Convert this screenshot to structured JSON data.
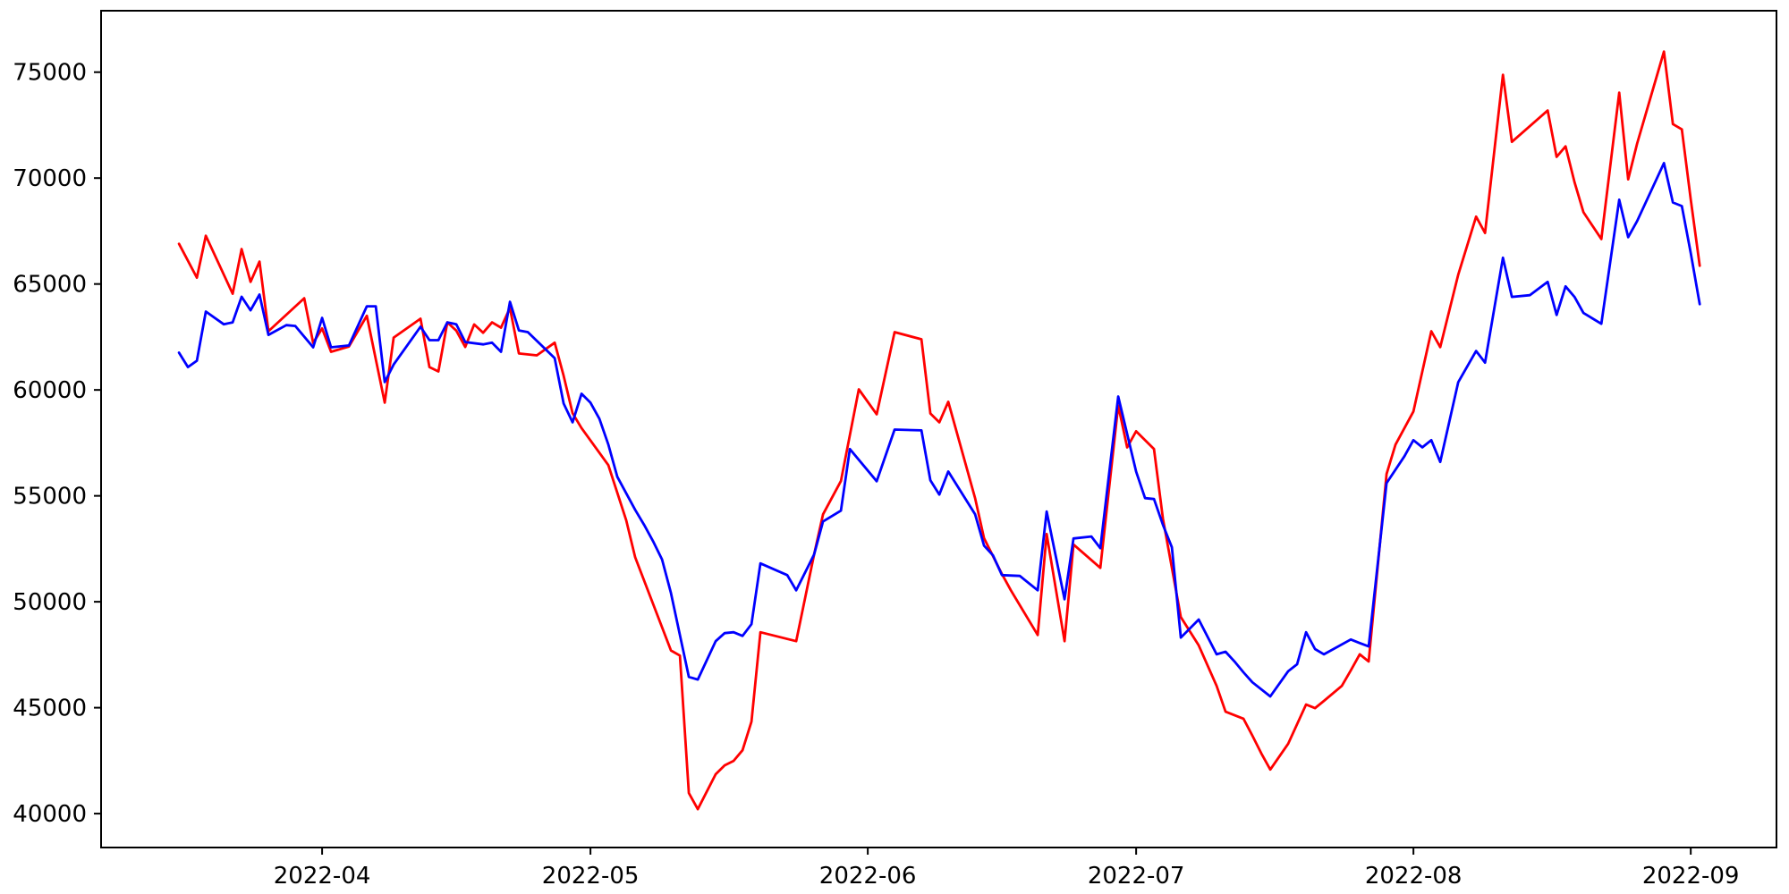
{
  "chart_data": {
    "type": "line",
    "title": "",
    "xlabel": "",
    "ylabel": "",
    "grid": false,
    "legend": "none",
    "background_color": "#ffffff",
    "axis_color": "#000000",
    "x_axis": {
      "type": "time",
      "range": [
        "2022-03-07T07:00:00Z",
        "2022-09-10T14:00:00Z"
      ],
      "ticks": [
        {
          "date": "2022-04-01",
          "label": "2022-04"
        },
        {
          "date": "2022-05-01",
          "label": "2022-05"
        },
        {
          "date": "2022-06-01",
          "label": "2022-06"
        },
        {
          "date": "2022-07-01",
          "label": "2022-07"
        },
        {
          "date": "2022-08-01",
          "label": "2022-08"
        },
        {
          "date": "2022-09-01",
          "label": "2022-09"
        }
      ]
    },
    "y_axis": {
      "range": [
        38400,
        77900
      ],
      "ticks": [
        40000,
        45000,
        50000,
        55000,
        60000,
        65000,
        70000,
        75000
      ]
    },
    "series": [
      {
        "name": "red-series",
        "color": "#ff0000",
        "points": [
          [
            "2022-03-16",
            66900
          ],
          [
            "2022-03-18",
            65300
          ],
          [
            "2022-03-19",
            67280
          ],
          [
            "2022-03-22",
            64540
          ],
          [
            "2022-03-23",
            66650
          ],
          [
            "2022-03-24",
            65100
          ],
          [
            "2022-03-25",
            66060
          ],
          [
            "2022-03-26",
            62770
          ],
          [
            "2022-03-30",
            64330
          ],
          [
            "2022-03-31",
            62220
          ],
          [
            "2022-04-01",
            62900
          ],
          [
            "2022-04-02",
            61800
          ],
          [
            "2022-04-04",
            62050
          ],
          [
            "2022-04-06",
            63500
          ],
          [
            "2022-04-08",
            59400
          ],
          [
            "2022-04-09",
            62470
          ],
          [
            "2022-04-12",
            63360
          ],
          [
            "2022-04-13",
            61080
          ],
          [
            "2022-04-14",
            60870
          ],
          [
            "2022-04-15",
            63190
          ],
          [
            "2022-04-16",
            62800
          ],
          [
            "2022-04-17",
            62030
          ],
          [
            "2022-04-18",
            63090
          ],
          [
            "2022-04-19",
            62700
          ],
          [
            "2022-04-20",
            63190
          ],
          [
            "2022-04-21",
            62940
          ],
          [
            "2022-04-22",
            63870
          ],
          [
            "2022-04-23",
            61720
          ],
          [
            "2022-04-25",
            61630
          ],
          [
            "2022-04-27",
            62230
          ],
          [
            "2022-04-28",
            60670
          ],
          [
            "2022-04-29",
            58900
          ],
          [
            "2022-04-30",
            58200
          ],
          [
            "2022-05-03",
            56450
          ],
          [
            "2022-05-05",
            53840
          ],
          [
            "2022-05-06",
            52100
          ],
          [
            "2022-05-08",
            49900
          ],
          [
            "2022-05-10",
            47700
          ],
          [
            "2022-05-11",
            47460
          ],
          [
            "2022-05-12",
            40970
          ],
          [
            "2022-05-13",
            40210
          ],
          [
            "2022-05-15",
            41860
          ],
          [
            "2022-05-16",
            42280
          ],
          [
            "2022-05-17",
            42490
          ],
          [
            "2022-05-18",
            42990
          ],
          [
            "2022-05-19",
            44340
          ],
          [
            "2022-05-20",
            48560
          ],
          [
            "2022-05-24",
            48140
          ],
          [
            "2022-05-26",
            52230
          ],
          [
            "2022-05-27",
            54130
          ],
          [
            "2022-05-29",
            55700
          ],
          [
            "2022-05-31",
            60030
          ],
          [
            "2022-06-02",
            58850
          ],
          [
            "2022-06-04",
            62730
          ],
          [
            "2022-06-07",
            62390
          ],
          [
            "2022-06-08",
            58890
          ],
          [
            "2022-06-09",
            58470
          ],
          [
            "2022-06-10",
            59440
          ],
          [
            "2022-06-13",
            54890
          ],
          [
            "2022-06-14",
            53000
          ],
          [
            "2022-06-16",
            51310
          ],
          [
            "2022-06-17",
            50540
          ],
          [
            "2022-06-20",
            48430
          ],
          [
            "2022-06-21",
            53200
          ],
          [
            "2022-06-23",
            48140
          ],
          [
            "2022-06-24",
            52700
          ],
          [
            "2022-06-27",
            51600
          ],
          [
            "2022-06-29",
            59270
          ],
          [
            "2022-06-30",
            57290
          ],
          [
            "2022-07-01",
            58050
          ],
          [
            "2022-07-03",
            57210
          ],
          [
            "2022-07-04",
            53920
          ],
          [
            "2022-07-06",
            49280
          ],
          [
            "2022-07-08",
            47940
          ],
          [
            "2022-07-10",
            46030
          ],
          [
            "2022-07-11",
            44810
          ],
          [
            "2022-07-13",
            44480
          ],
          [
            "2022-07-14",
            43680
          ],
          [
            "2022-07-15",
            42840
          ],
          [
            "2022-07-16",
            42080
          ],
          [
            "2022-07-18",
            43300
          ],
          [
            "2022-07-20",
            45150
          ],
          [
            "2022-07-21",
            44980
          ],
          [
            "2022-07-22",
            45320
          ],
          [
            "2022-07-24",
            46030
          ],
          [
            "2022-07-25",
            46760
          ],
          [
            "2022-07-26",
            47520
          ],
          [
            "2022-07-27",
            47180
          ],
          [
            "2022-07-29",
            56030
          ],
          [
            "2022-07-30",
            57420
          ],
          [
            "2022-08-01",
            58980
          ],
          [
            "2022-08-03",
            62770
          ],
          [
            "2022-08-04",
            62020
          ],
          [
            "2022-08-06",
            65440
          ],
          [
            "2022-08-08",
            68180
          ],
          [
            "2022-08-09",
            67410
          ],
          [
            "2022-08-11",
            74880
          ],
          [
            "2022-08-12",
            71710
          ],
          [
            "2022-08-16",
            73190
          ],
          [
            "2022-08-17",
            71000
          ],
          [
            "2022-08-18",
            71500
          ],
          [
            "2022-08-19",
            69810
          ],
          [
            "2022-08-20",
            68390
          ],
          [
            "2022-08-22",
            67120
          ],
          [
            "2022-08-24",
            74030
          ],
          [
            "2022-08-25",
            69940
          ],
          [
            "2022-08-26",
            71630
          ],
          [
            "2022-08-29",
            75970
          ],
          [
            "2022-08-30",
            72550
          ],
          [
            "2022-08-31",
            72300
          ],
          [
            "2022-09-01",
            68980
          ],
          [
            "2022-09-02",
            65860
          ]
        ]
      },
      {
        "name": "blue-series",
        "color": "#0000ff",
        "points": [
          [
            "2022-03-16",
            61760
          ],
          [
            "2022-03-17",
            61080
          ],
          [
            "2022-03-18",
            61380
          ],
          [
            "2022-03-19",
            63700
          ],
          [
            "2022-03-21",
            63100
          ],
          [
            "2022-03-22",
            63190
          ],
          [
            "2022-03-23",
            64400
          ],
          [
            "2022-03-24",
            63760
          ],
          [
            "2022-03-25",
            64500
          ],
          [
            "2022-03-26",
            62600
          ],
          [
            "2022-03-28",
            63060
          ],
          [
            "2022-03-29",
            63020
          ],
          [
            "2022-03-31",
            62010
          ],
          [
            "2022-04-01",
            63400
          ],
          [
            "2022-04-02",
            62010
          ],
          [
            "2022-04-04",
            62100
          ],
          [
            "2022-04-06",
            63950
          ],
          [
            "2022-04-07",
            63950
          ],
          [
            "2022-04-08",
            60370
          ],
          [
            "2022-04-09",
            61200
          ],
          [
            "2022-04-12",
            62980
          ],
          [
            "2022-04-13",
            62350
          ],
          [
            "2022-04-14",
            62350
          ],
          [
            "2022-04-15",
            63190
          ],
          [
            "2022-04-16",
            63100
          ],
          [
            "2022-04-17",
            62260
          ],
          [
            "2022-04-19",
            62150
          ],
          [
            "2022-04-20",
            62230
          ],
          [
            "2022-04-21",
            61800
          ],
          [
            "2022-04-22",
            64160
          ],
          [
            "2022-04-23",
            62810
          ],
          [
            "2022-04-24",
            62730
          ],
          [
            "2022-04-27",
            61500
          ],
          [
            "2022-04-28",
            59360
          ],
          [
            "2022-04-29",
            58470
          ],
          [
            "2022-04-30",
            59820
          ],
          [
            "2022-05-01",
            59400
          ],
          [
            "2022-05-02",
            58640
          ],
          [
            "2022-05-03",
            57420
          ],
          [
            "2022-05-04",
            55900
          ],
          [
            "2022-05-06",
            54340
          ],
          [
            "2022-05-07",
            53630
          ],
          [
            "2022-05-08",
            52860
          ],
          [
            "2022-05-09",
            52000
          ],
          [
            "2022-05-10",
            50410
          ],
          [
            "2022-05-12",
            46450
          ],
          [
            "2022-05-13",
            46330
          ],
          [
            "2022-05-15",
            48140
          ],
          [
            "2022-05-16",
            48520
          ],
          [
            "2022-05-17",
            48560
          ],
          [
            "2022-05-18",
            48390
          ],
          [
            "2022-05-19",
            48940
          ],
          [
            "2022-05-20",
            51810
          ],
          [
            "2022-05-23",
            51260
          ],
          [
            "2022-05-24",
            50540
          ],
          [
            "2022-05-26",
            52230
          ],
          [
            "2022-05-27",
            53790
          ],
          [
            "2022-05-29",
            54300
          ],
          [
            "2022-05-30",
            57210
          ],
          [
            "2022-06-02",
            55690
          ],
          [
            "2022-06-04",
            58130
          ],
          [
            "2022-06-07",
            58090
          ],
          [
            "2022-06-08",
            55730
          ],
          [
            "2022-06-09",
            55060
          ],
          [
            "2022-06-10",
            56150
          ],
          [
            "2022-06-13",
            54130
          ],
          [
            "2022-06-14",
            52650
          ],
          [
            "2022-06-15",
            52190
          ],
          [
            "2022-06-16",
            51260
          ],
          [
            "2022-06-18",
            51220
          ],
          [
            "2022-06-20",
            50540
          ],
          [
            "2022-06-21",
            54260
          ],
          [
            "2022-06-23",
            50120
          ],
          [
            "2022-06-24",
            52990
          ],
          [
            "2022-06-26",
            53080
          ],
          [
            "2022-06-27",
            52530
          ],
          [
            "2022-06-29",
            59690
          ],
          [
            "2022-07-01",
            56150
          ],
          [
            "2022-07-02",
            54890
          ],
          [
            "2022-07-03",
            54850
          ],
          [
            "2022-07-04",
            53630
          ],
          [
            "2022-07-05",
            52570
          ],
          [
            "2022-07-06",
            48310
          ],
          [
            "2022-07-08",
            49160
          ],
          [
            "2022-07-10",
            47520
          ],
          [
            "2022-07-11",
            47640
          ],
          [
            "2022-07-12",
            47180
          ],
          [
            "2022-07-13",
            46670
          ],
          [
            "2022-07-14",
            46200
          ],
          [
            "2022-07-16",
            45530
          ],
          [
            "2022-07-18",
            46720
          ],
          [
            "2022-07-19",
            47050
          ],
          [
            "2022-07-20",
            48560
          ],
          [
            "2022-07-21",
            47770
          ],
          [
            "2022-07-22",
            47520
          ],
          [
            "2022-07-25",
            48220
          ],
          [
            "2022-07-26",
            48050
          ],
          [
            "2022-07-27",
            47890
          ],
          [
            "2022-07-29",
            55600
          ],
          [
            "2022-07-31",
            56870
          ],
          [
            "2022-08-01",
            57630
          ],
          [
            "2022-08-02",
            57290
          ],
          [
            "2022-08-03",
            57630
          ],
          [
            "2022-08-04",
            56600
          ],
          [
            "2022-08-06",
            60360
          ],
          [
            "2022-08-08",
            61840
          ],
          [
            "2022-08-09",
            61290
          ],
          [
            "2022-08-11",
            66240
          ],
          [
            "2022-08-12",
            64390
          ],
          [
            "2022-08-14",
            64470
          ],
          [
            "2022-08-16",
            65100
          ],
          [
            "2022-08-17",
            63540
          ],
          [
            "2022-08-18",
            64890
          ],
          [
            "2022-08-19",
            64390
          ],
          [
            "2022-08-20",
            63630
          ],
          [
            "2022-08-22",
            63120
          ],
          [
            "2022-08-24",
            68980
          ],
          [
            "2022-08-25",
            67210
          ],
          [
            "2022-08-26",
            67970
          ],
          [
            "2022-08-29",
            70710
          ],
          [
            "2022-08-30",
            68850
          ],
          [
            "2022-08-31",
            68680
          ],
          [
            "2022-09-01",
            66450
          ],
          [
            "2022-09-02",
            64050
          ]
        ]
      }
    ]
  }
}
